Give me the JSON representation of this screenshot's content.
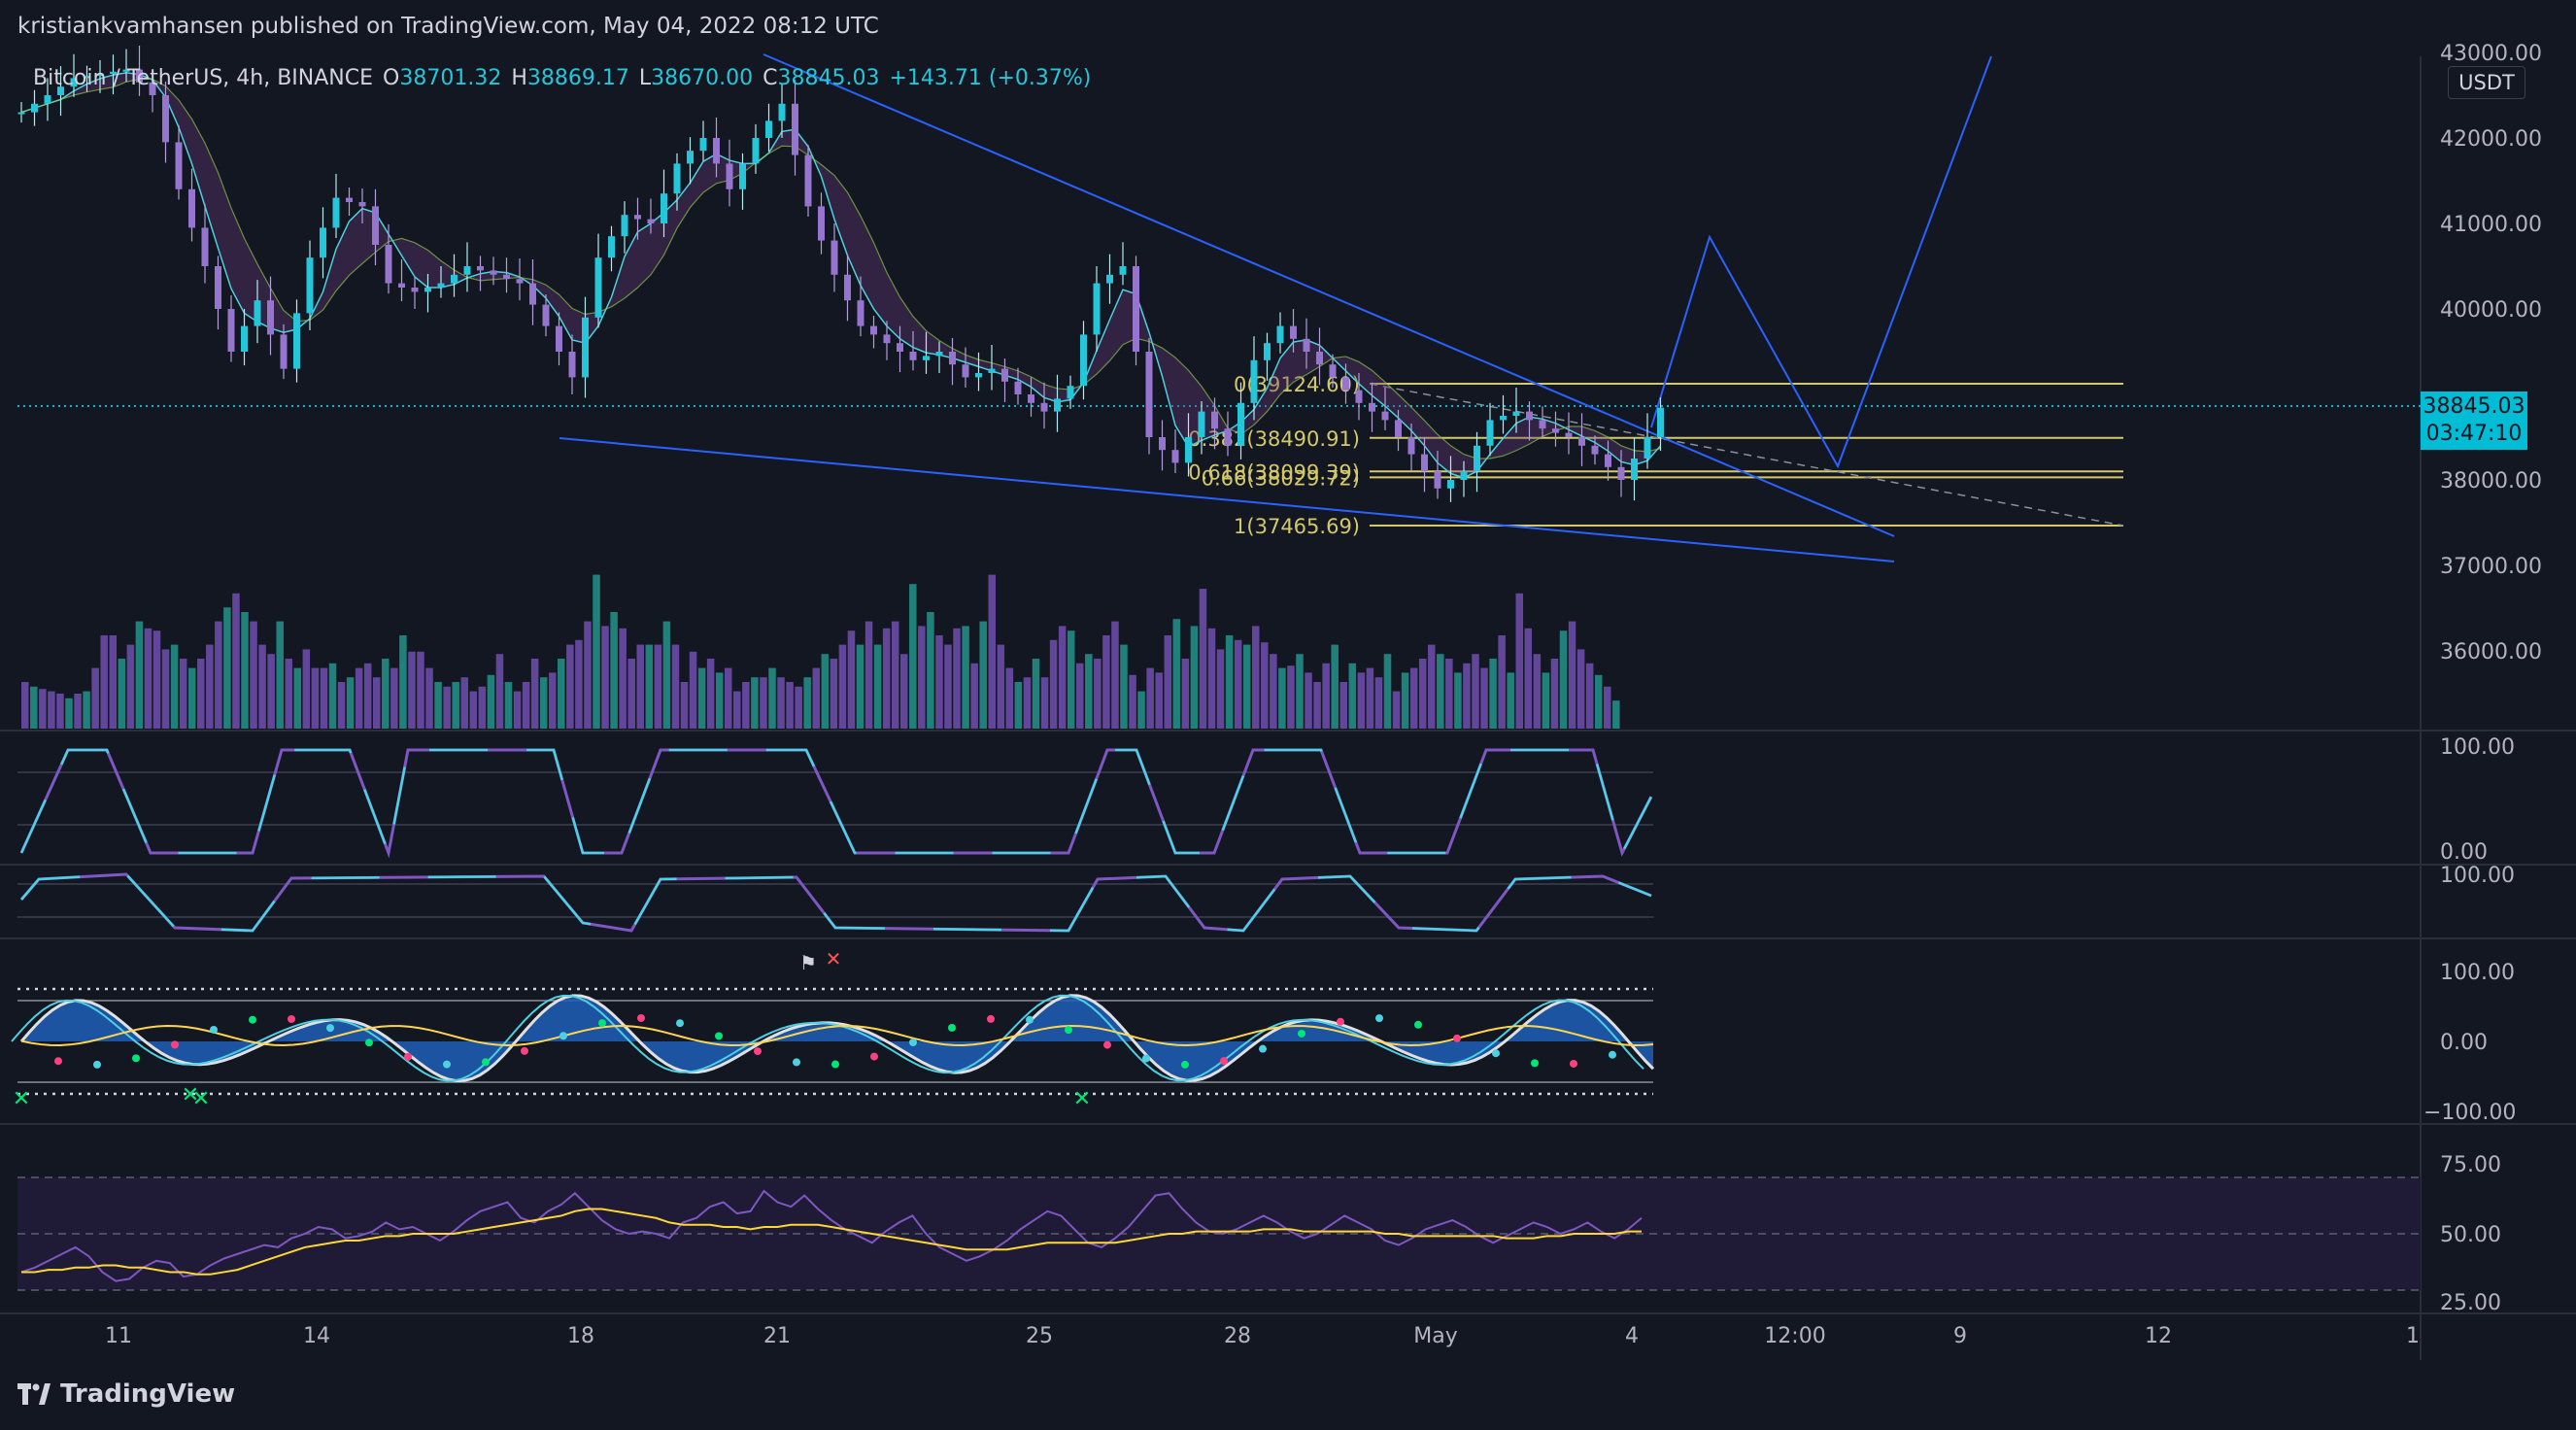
{
  "header": {
    "publisher": "kristiankvamhansen published on TradingView.com, May 04, 2022 08:12 UTC"
  },
  "legend": {
    "symbol": "Bitcoin / TetherUS, 4h, BINANCE",
    "o_label": "O",
    "o_value": "38701.32",
    "h_label": "H",
    "h_value": "38869.17",
    "l_label": "L",
    "l_value": "38670.00",
    "c_label": "C",
    "c_value": "38845.03",
    "change": "+143.71 (+0.37%)"
  },
  "price_badge": {
    "price": "38845.03",
    "countdown": "03:47:10"
  },
  "currency_badge": "USDT",
  "footer": {
    "brand": "TradingView"
  },
  "colors": {
    "background": "#131722",
    "accent": "#00bcd4",
    "trendline": "#2962ff",
    "fib": "#d4c96a",
    "bull": "#26c6da",
    "bear": "#7e57c2"
  },
  "chart_data": [
    {
      "type": "candlestick",
      "title": "Bitcoin / TetherUS, 4h, BINANCE",
      "y_ticks": [
        "43000.00",
        "42000.00",
        "41000.00",
        "40000.00",
        "39000.00",
        "38000.00",
        "37000.00",
        "36000.00"
      ],
      "ylim": [
        35300,
        43050
      ],
      "x_ticks": [
        "11",
        "14",
        "18",
        "21",
        "25",
        "28",
        "May",
        "4",
        "12:00",
        "9",
        "12",
        "1"
      ],
      "last_price": 38845.03,
      "close_path": [
        [
          0,
          42300
        ],
        [
          4,
          42700
        ],
        [
          8,
          42800
        ],
        [
          10,
          42500
        ],
        [
          12,
          41400
        ],
        [
          14,
          40500
        ],
        [
          16,
          39500
        ],
        [
          18,
          40100
        ],
        [
          20,
          39300
        ],
        [
          22,
          40600
        ],
        [
          24,
          41300
        ],
        [
          26,
          41200
        ],
        [
          28,
          40300
        ],
        [
          30,
          40200
        ],
        [
          32,
          40300
        ],
        [
          34,
          40500
        ],
        [
          36,
          40400
        ],
        [
          38,
          40300
        ],
        [
          40,
          39800
        ],
        [
          42,
          39200
        ],
        [
          44,
          40600
        ],
        [
          46,
          41100
        ],
        [
          48,
          41000
        ],
        [
          50,
          41700
        ],
        [
          52,
          42000
        ],
        [
          54,
          41400
        ],
        [
          56,
          42000
        ],
        [
          58,
          42400
        ],
        [
          60,
          41200
        ],
        [
          62,
          40400
        ],
        [
          64,
          39800
        ],
        [
          66,
          39600
        ],
        [
          68,
          39400
        ],
        [
          70,
          39500
        ],
        [
          72,
          39200
        ],
        [
          74,
          39300
        ],
        [
          76,
          39000
        ],
        [
          78,
          38800
        ],
        [
          80,
          39100
        ],
        [
          82,
          40300
        ],
        [
          84,
          40500
        ],
        [
          86,
          38500
        ],
        [
          88,
          38200
        ],
        [
          90,
          38800
        ],
        [
          92,
          38400
        ],
        [
          94,
          39400
        ],
        [
          96,
          39800
        ],
        [
          98,
          39500
        ],
        [
          100,
          39200
        ],
        [
          102,
          38900
        ],
        [
          104,
          38700
        ],
        [
          106,
          38300
        ],
        [
          108,
          37900
        ],
        [
          110,
          38100
        ],
        [
          112,
          38700
        ],
        [
          114,
          38800
        ],
        [
          116,
          38600
        ],
        [
          118,
          38500
        ],
        [
          120,
          38300
        ],
        [
          122,
          38000
        ],
        [
          124,
          38500
        ],
        [
          125,
          38845
        ]
      ]
    },
    {
      "type": "annotation",
      "title": "Fibonacci retracement",
      "levels": [
        {
          "ratio": "0",
          "price": 39124.6,
          "label": "0(39124.60)"
        },
        {
          "ratio": "0.382",
          "price": 38490.91,
          "label": "0.382(38490.91)"
        },
        {
          "ratio": "0.618",
          "price": 38099.39,
          "label": "0.618(38099.39)"
        },
        {
          "ratio": "0.66",
          "price": 38029.72,
          "label": "0.66(38029.72)"
        },
        {
          "ratio": "1",
          "price": 37465.69,
          "label": "1(37465.69)"
        }
      ]
    },
    {
      "type": "bar",
      "title": "Volume",
      "values": [
        2,
        1.8,
        1.7,
        1.6,
        1.5,
        1.3,
        1.5,
        1.6,
        2.6,
        4,
        4,
        3,
        3.6,
        4.6,
        4.3,
        4.2,
        3.4,
        3.6,
        3,
        2.6,
        3,
        3.6,
        4.6,
        5.2,
        5.8,
        5,
        4.6,
        3.6,
        3.2,
        4.6,
        3,
        2.6,
        3.4,
        2.6,
        2.6,
        2.8,
        2,
        2.2,
        2.6,
        2.8,
        2.2,
        3,
        2.6,
        4,
        3.3,
        3.3,
        2.6,
        2,
        1.8,
        2,
        2.2,
        1.6,
        1.8,
        2.3,
        3.2,
        2,
        1.6,
        2,
        3,
        2.2,
        2.4,
        3,
        3.6,
        3.8,
        4.6,
        6.6,
        4.4,
        5,
        4.3,
        3,
        3.6,
        3.6,
        3.6,
        4.6,
        3.6,
        2,
        3.3,
        2.6,
        3,
        2.4,
        2.6,
        1.6,
        2,
        2.2,
        2.2,
        2.6,
        2.2,
        2,
        1.8,
        2.2,
        2.6,
        3.2,
        3,
        3.6,
        4.2,
        3.6,
        4.6,
        3.6,
        4.3,
        4.6,
        3.2,
        6.2,
        4.4,
        5,
        4,
        3.6,
        4.3,
        4.4,
        2.8,
        4.6,
        6.6,
        3.6,
        2.6,
        2,
        2.2,
        3,
        2.2,
        3.8,
        4.4,
        4.2,
        2.8,
        3.2,
        3,
        4,
        4.6,
        3.6,
        2.3,
        1.6,
        2.6,
        2.4,
        4,
        4.7,
        3,
        4.4,
        6,
        4.3,
        3.4,
        4,
        3.8,
        3.6,
        4.4,
        3.7,
        3.2,
        2.6,
        2.7,
        3.2,
        2.4,
        2,
        2.8,
        3.6,
        2,
        2.8,
        2.4,
        2.6,
        2.2,
        3.2,
        1.6,
        2.4,
        2.6,
        3,
        3.6,
        3.2,
        3,
        2.4,
        2.8,
        3.2,
        2.6,
        3,
        4,
        2.4,
        5.8,
        4.3,
        3.2,
        2.4,
        3,
        4.2,
        4.6,
        3.4,
        2.8,
        2.3,
        1.8,
        1.2
      ],
      "note": "relative heights"
    },
    {
      "type": "line",
      "title": "Oscillator 1",
      "y_ticks": [
        "100.00",
        "0.00"
      ]
    },
    {
      "type": "line",
      "title": "Oscillator 2",
      "y_ticks": [
        "100.00"
      ]
    },
    {
      "type": "area",
      "title": "Wave oscillator",
      "y_ticks": [
        "100.00",
        "0.00",
        "−100.00"
      ]
    },
    {
      "type": "line",
      "title": "RSI",
      "y_ticks": [
        "75.00",
        "50.00",
        "25.00"
      ],
      "ylim": [
        25,
        75
      ],
      "rsi_points": [
        33,
        35,
        38,
        41,
        44,
        40,
        33,
        29,
        30,
        35,
        38,
        37,
        31,
        32,
        36,
        39,
        41,
        43,
        45,
        44,
        48,
        50,
        53,
        52,
        48,
        49,
        51,
        55,
        52,
        53,
        50,
        47,
        51,
        56,
        60,
        62,
        64,
        57,
        55,
        60,
        63,
        68,
        62,
        56,
        52,
        50,
        51,
        50,
        48,
        55,
        57,
        62,
        64,
        59,
        60,
        69,
        64,
        62,
        67,
        61,
        56,
        52,
        49,
        46,
        51,
        55,
        58,
        50,
        44,
        41,
        38,
        40,
        43,
        47,
        52,
        56,
        60,
        58,
        52,
        46,
        44,
        48,
        53,
        60,
        67,
        68,
        61,
        55,
        51,
        50,
        52,
        55,
        58,
        55,
        51,
        48,
        50,
        54,
        58,
        55,
        52,
        47,
        45,
        48,
        52,
        54,
        56,
        53,
        49,
        46,
        49,
        52,
        55,
        53,
        50,
        52,
        55,
        51,
        48,
        52,
        57
      ],
      "rsi_ma": [
        33,
        33,
        34,
        34,
        35,
        35,
        36,
        36,
        35,
        35,
        34,
        33,
        33,
        32,
        32,
        33,
        34,
        36,
        38,
        40,
        42,
        44,
        45,
        46,
        47,
        47,
        48,
        49,
        49,
        50,
        50,
        50,
        50,
        51,
        52,
        53,
        54,
        55,
        56,
        57,
        58,
        60,
        61,
        61,
        60,
        59,
        58,
        57,
        55,
        54,
        54,
        54,
        53,
        53,
        52,
        53,
        53,
        54,
        54,
        54,
        53,
        52,
        51,
        50,
        49,
        48,
        47,
        46,
        45,
        44,
        43,
        43,
        43,
        43,
        44,
        45,
        46,
        46,
        46,
        46,
        46,
        46,
        47,
        48,
        49,
        50,
        50,
        51,
        51,
        51,
        51,
        51,
        52,
        52,
        52,
        51,
        51,
        51,
        51,
        51,
        51,
        50,
        50,
        49,
        49,
        49,
        49,
        49,
        49,
        49,
        48,
        48,
        48,
        49,
        49,
        50,
        50,
        50,
        50,
        51,
        51
      ]
    }
  ]
}
